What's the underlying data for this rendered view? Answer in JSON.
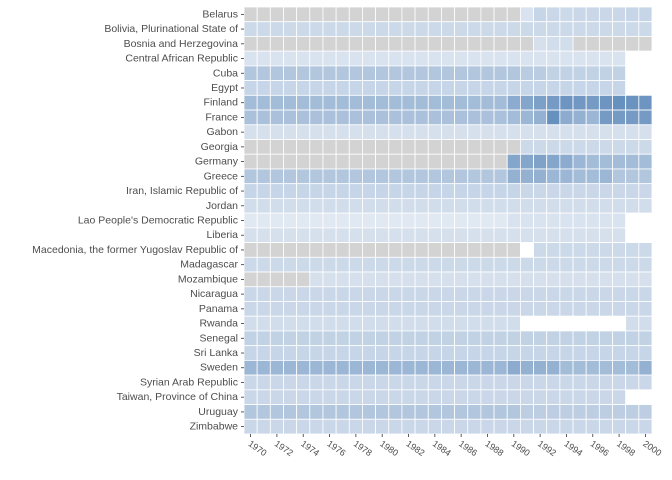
{
  "chart_data": {
    "type": "heatmap",
    "years": [
      1970,
      1971,
      1972,
      1973,
      1974,
      1975,
      1976,
      1977,
      1978,
      1979,
      1980,
      1981,
      1982,
      1983,
      1984,
      1985,
      1986,
      1987,
      1988,
      1989,
      1990,
      1991,
      1992,
      1993,
      1994,
      1995,
      1996,
      1997,
      1998,
      1999,
      2000
    ],
    "x_tick_labels": [
      "1970",
      "1972",
      "1974",
      "1976",
      "1978",
      "1980",
      "1982",
      "1984",
      "1986",
      "1988",
      "1990",
      "1992",
      "1994",
      "1996",
      "1998",
      "2000"
    ],
    "countries": [
      "Belarus",
      "Bolivia, Plurinational State of",
      "Bosnia and Herzegovina",
      "Central African Republic",
      "Cuba",
      "Egypt",
      "Finland",
      "France",
      "Gabon",
      "Georgia",
      "Germany",
      "Greece",
      "Iran, Islamic Republic of",
      "Jordan",
      "Lao People's Democratic Republic",
      "Liberia",
      "Macedonia, the former Yugoslav Republic of",
      "Madagascar",
      "Mozambique",
      "Nicaragua",
      "Panama",
      "Rwanda",
      "Senegal",
      "Sri Lanka",
      "Sweden",
      "Syrian Arab Republic",
      "Taiwan, Province of China",
      "Uruguay",
      "Zimbabwe"
    ],
    "value_encoding": "relative intensity 0-1 (light to dark blue); -1 = no data (grey); null = blank",
    "colors": {
      "low": "#e8edf5",
      "high": "#4f7fb4",
      "missing": "#d3d3d3",
      "background": "#ffffff"
    },
    "values": [
      [
        -1,
        -1,
        -1,
        -1,
        -1,
        -1,
        -1,
        -1,
        -1,
        -1,
        -1,
        -1,
        -1,
        -1,
        -1,
        -1,
        -1,
        -1,
        -1,
        -1,
        -1,
        0.1,
        0.22,
        0.2,
        0.18,
        0.2,
        0.2,
        0.2,
        0.2,
        0.22,
        0.22
      ],
      [
        0.18,
        0.18,
        0.18,
        0.18,
        0.18,
        0.18,
        0.18,
        0.18,
        0.18,
        0.18,
        0.18,
        0.18,
        0.18,
        0.18,
        0.18,
        0.18,
        0.18,
        0.18,
        0.18,
        0.18,
        0.18,
        0.18,
        0.18,
        0.18,
        0.18,
        0.18,
        0.18,
        0.18,
        0.18,
        0.18,
        0.18
      ],
      [
        -1,
        -1,
        -1,
        -1,
        -1,
        -1,
        -1,
        -1,
        -1,
        -1,
        -1,
        -1,
        -1,
        -1,
        -1,
        -1,
        -1,
        -1,
        -1,
        -1,
        -1,
        -1,
        0.12,
        0.15,
        0.15,
        -1,
        -1,
        -1,
        -1,
        -1,
        -1
      ],
      [
        0.1,
        0.1,
        0.1,
        0.1,
        0.1,
        0.1,
        0.1,
        0.1,
        0.1,
        0.1,
        0.1,
        0.1,
        0.1,
        0.1,
        0.1,
        0.1,
        0.1,
        0.1,
        0.1,
        0.1,
        0.1,
        0.1,
        0.1,
        0.1,
        0.1,
        0.1,
        0.1,
        0.1,
        0.1,
        null,
        null
      ],
      [
        0.35,
        0.35,
        0.35,
        0.35,
        0.35,
        0.35,
        0.35,
        0.35,
        0.35,
        0.35,
        0.35,
        0.35,
        0.35,
        0.35,
        0.35,
        0.35,
        0.35,
        0.35,
        0.35,
        0.35,
        0.35,
        0.3,
        0.3,
        0.25,
        0.25,
        0.25,
        0.25,
        0.25,
        0.25,
        null,
        null
      ],
      [
        0.22,
        0.22,
        0.22,
        0.22,
        0.22,
        0.22,
        0.22,
        0.22,
        0.22,
        0.22,
        0.22,
        0.22,
        0.22,
        0.22,
        0.22,
        0.22,
        0.22,
        0.22,
        0.22,
        0.22,
        0.22,
        0.22,
        0.22,
        0.22,
        0.22,
        0.22,
        0.22,
        0.22,
        0.22,
        null,
        null
      ],
      [
        0.45,
        0.45,
        0.45,
        0.45,
        0.45,
        0.45,
        0.45,
        0.45,
        0.45,
        0.45,
        0.45,
        0.45,
        0.45,
        0.45,
        0.45,
        0.45,
        0.45,
        0.45,
        0.45,
        0.45,
        0.6,
        0.65,
        0.7,
        0.75,
        0.8,
        0.78,
        0.75,
        0.8,
        0.85,
        0.82,
        0.8
      ],
      [
        0.4,
        0.4,
        0.4,
        0.4,
        0.4,
        0.4,
        0.4,
        0.4,
        0.4,
        0.4,
        0.4,
        0.4,
        0.4,
        0.4,
        0.4,
        0.4,
        0.4,
        0.4,
        0.4,
        0.4,
        0.45,
        0.5,
        0.55,
        0.85,
        0.6,
        0.55,
        0.5,
        0.75,
        0.75,
        0.75,
        0.75
      ],
      [
        0.12,
        0.12,
        0.12,
        0.12,
        0.12,
        0.12,
        0.12,
        0.12,
        0.12,
        0.12,
        0.12,
        0.12,
        0.12,
        0.12,
        0.12,
        0.12,
        0.12,
        0.12,
        0.12,
        0.12,
        0.12,
        0.12,
        0.12,
        0.12,
        0.12,
        0.12,
        0.12,
        0.12,
        0.12,
        0.12,
        0.12
      ],
      [
        -1,
        -1,
        -1,
        -1,
        -1,
        -1,
        -1,
        -1,
        -1,
        -1,
        -1,
        -1,
        -1,
        -1,
        -1,
        -1,
        -1,
        -1,
        -1,
        -1,
        -1,
        0.18,
        0.18,
        0.18,
        0.18,
        0.18,
        0.18,
        0.18,
        0.18,
        0.18,
        0.18
      ],
      [
        -1,
        -1,
        -1,
        -1,
        -1,
        -1,
        -1,
        -1,
        -1,
        -1,
        -1,
        -1,
        -1,
        -1,
        -1,
        -1,
        -1,
        -1,
        -1,
        -1,
        0.65,
        0.65,
        0.68,
        0.65,
        0.6,
        0.5,
        0.45,
        0.45,
        0.45,
        0.45,
        0.45
      ],
      [
        0.35,
        0.35,
        0.35,
        0.35,
        0.35,
        0.35,
        0.35,
        0.35,
        0.35,
        0.35,
        0.35,
        0.35,
        0.35,
        0.35,
        0.35,
        0.35,
        0.35,
        0.35,
        0.35,
        0.35,
        0.55,
        0.55,
        0.55,
        0.5,
        0.5,
        0.45,
        0.45,
        0.5,
        0.35,
        0.35,
        0.35
      ],
      [
        0.22,
        0.22,
        0.22,
        0.22,
        0.22,
        0.22,
        0.22,
        0.22,
        0.22,
        0.22,
        0.22,
        0.22,
        0.22,
        0.22,
        0.22,
        0.22,
        0.22,
        0.22,
        0.22,
        0.22,
        0.22,
        0.2,
        0.2,
        0.2,
        0.2,
        0.2,
        0.2,
        0.2,
        0.2,
        0.2,
        0.2
      ],
      [
        0.15,
        0.15,
        0.15,
        0.15,
        0.15,
        0.15,
        0.15,
        0.15,
        0.15,
        0.15,
        0.15,
        0.15,
        0.15,
        0.15,
        0.15,
        0.15,
        0.15,
        0.15,
        0.15,
        0.15,
        0.15,
        0.15,
        0.15,
        0.15,
        0.15,
        0.15,
        0.15,
        0.15,
        0.15,
        0.15,
        0.15
      ],
      [
        0.05,
        0.05,
        0.05,
        0.05,
        0.05,
        0.05,
        0.05,
        0.05,
        0.05,
        0.05,
        0.05,
        0.05,
        0.05,
        0.05,
        0.05,
        0.05,
        0.05,
        0.05,
        0.05,
        0.05,
        0.1,
        0.1,
        0.1,
        0.1,
        0.1,
        0.1,
        0.1,
        0.1,
        0.1,
        null,
        null
      ],
      [
        0.12,
        0.12,
        0.12,
        0.12,
        0.12,
        0.12,
        0.12,
        0.12,
        0.12,
        0.12,
        0.12,
        0.12,
        0.12,
        0.12,
        0.12,
        0.12,
        0.12,
        0.12,
        0.12,
        0.12,
        0.12,
        0.12,
        0.12,
        0.12,
        0.12,
        0.12,
        0.12,
        0.12,
        0.12,
        null,
        null
      ],
      [
        -1,
        -1,
        -1,
        -1,
        -1,
        -1,
        -1,
        -1,
        -1,
        -1,
        -1,
        -1,
        -1,
        -1,
        -1,
        -1,
        -1,
        -1,
        -1,
        -1,
        -1,
        null,
        0.18,
        0.18,
        0.18,
        0.18,
        0.18,
        0.18,
        0.18,
        0.18,
        0.18
      ],
      [
        0.18,
        0.18,
        0.18,
        0.18,
        0.18,
        0.18,
        0.18,
        0.18,
        0.18,
        0.18,
        0.18,
        0.18,
        0.18,
        0.18,
        0.18,
        0.18,
        0.18,
        0.18,
        0.18,
        0.18,
        0.18,
        0.18,
        0.18,
        0.18,
        0.18,
        0.18,
        0.18,
        0.18,
        0.18,
        0.18,
        0.18
      ],
      [
        -1,
        -1,
        -1,
        -1,
        -1,
        0.12,
        0.12,
        0.12,
        0.12,
        0.12,
        0.12,
        0.12,
        0.12,
        0.12,
        0.12,
        0.12,
        0.12,
        0.12,
        0.12,
        0.12,
        0.12,
        0.12,
        0.12,
        0.12,
        0.12,
        0.12,
        0.12,
        0.12,
        0.12,
        0.12,
        0.12
      ],
      [
        0.2,
        0.2,
        0.2,
        0.2,
        0.2,
        0.2,
        0.2,
        0.2,
        0.2,
        0.2,
        0.2,
        0.2,
        0.2,
        0.2,
        0.2,
        0.2,
        0.2,
        0.2,
        0.2,
        0.2,
        0.2,
        0.2,
        0.2,
        0.2,
        0.2,
        0.2,
        0.2,
        0.2,
        0.2,
        0.2,
        0.2
      ],
      [
        0.2,
        0.2,
        0.2,
        0.2,
        0.2,
        0.2,
        0.2,
        0.2,
        0.2,
        0.2,
        0.2,
        0.2,
        0.2,
        0.2,
        0.2,
        0.2,
        0.2,
        0.2,
        0.2,
        0.2,
        0.2,
        0.2,
        0.2,
        0.2,
        0.2,
        0.2,
        0.2,
        0.2,
        0.2,
        0.2,
        0.2
      ],
      [
        0.15,
        0.15,
        0.15,
        0.15,
        0.15,
        0.15,
        0.15,
        0.15,
        0.15,
        0.15,
        0.15,
        0.15,
        0.15,
        0.15,
        0.15,
        0.15,
        0.15,
        0.15,
        0.15,
        0.15,
        0.15,
        null,
        null,
        null,
        null,
        null,
        null,
        null,
        null,
        0.15,
        0.15
      ],
      [
        0.25,
        0.25,
        0.25,
        0.25,
        0.25,
        0.25,
        0.25,
        0.25,
        0.25,
        0.25,
        0.25,
        0.25,
        0.25,
        0.25,
        0.25,
        0.25,
        0.25,
        0.25,
        0.25,
        0.25,
        0.25,
        0.25,
        0.25,
        0.25,
        0.25,
        0.25,
        0.25,
        0.25,
        0.25,
        0.25,
        0.25
      ],
      [
        0.22,
        0.22,
        0.22,
        0.22,
        0.22,
        0.22,
        0.22,
        0.22,
        0.22,
        0.22,
        0.22,
        0.22,
        0.22,
        0.22,
        0.22,
        0.22,
        0.22,
        0.22,
        0.22,
        0.22,
        0.22,
        0.22,
        0.22,
        0.22,
        0.22,
        0.22,
        0.22,
        0.22,
        0.22,
        0.22,
        0.22
      ],
      [
        0.5,
        0.5,
        0.5,
        0.5,
        0.5,
        0.5,
        0.5,
        0.5,
        0.5,
        0.5,
        0.5,
        0.5,
        0.5,
        0.5,
        0.5,
        0.5,
        0.5,
        0.5,
        0.5,
        0.5,
        0.6,
        0.55,
        0.55,
        0.55,
        0.45,
        0.45,
        0.45,
        0.45,
        0.45,
        0.45,
        0.55
      ],
      [
        0.2,
        0.2,
        0.2,
        0.2,
        0.2,
        0.2,
        0.2,
        0.2,
        0.2,
        0.2,
        0.2,
        0.2,
        0.2,
        0.2,
        0.2,
        0.2,
        0.2,
        0.2,
        0.2,
        0.2,
        0.2,
        0.2,
        0.2,
        0.2,
        0.2,
        0.2,
        0.2,
        0.2,
        0.2,
        0.2,
        0.2
      ],
      [
        0.2,
        0.2,
        0.2,
        0.2,
        0.2,
        0.2,
        0.2,
        0.2,
        0.2,
        0.2,
        0.2,
        0.2,
        0.2,
        0.2,
        0.2,
        0.2,
        0.2,
        0.2,
        0.2,
        0.2,
        0.2,
        0.2,
        0.2,
        0.2,
        0.2,
        0.2,
        0.2,
        0.2,
        0.2,
        null,
        null
      ],
      [
        0.35,
        0.35,
        0.35,
        0.35,
        0.35,
        0.35,
        0.35,
        0.35,
        0.35,
        0.35,
        0.35,
        0.35,
        0.35,
        0.35,
        0.35,
        0.35,
        0.35,
        0.35,
        0.35,
        0.35,
        0.35,
        0.28,
        0.28,
        0.28,
        0.28,
        0.28,
        0.28,
        0.28,
        0.28,
        0.28,
        0.28
      ],
      [
        0.2,
        0.2,
        0.2,
        0.2,
        0.2,
        0.2,
        0.2,
        0.2,
        0.2,
        0.2,
        0.2,
        0.2,
        0.2,
        0.2,
        0.2,
        0.2,
        0.2,
        0.2,
        0.2,
        0.2,
        0.2,
        0.2,
        0.2,
        0.2,
        0.2,
        0.2,
        0.2,
        0.2,
        0.2,
        0.2,
        0.2
      ]
    ]
  }
}
